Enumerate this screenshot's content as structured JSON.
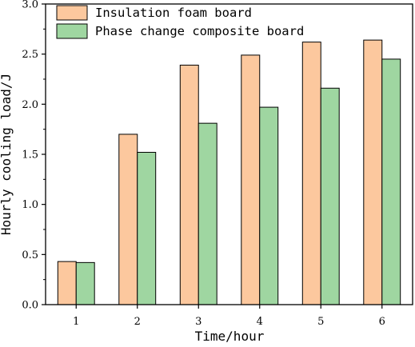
{
  "chart_data": {
    "type": "bar",
    "title": "",
    "xlabel": "Time/hour",
    "ylabel": "Hourly cooling load/J",
    "categories": [
      "1",
      "2",
      "3",
      "4",
      "5",
      "6"
    ],
    "series": [
      {
        "name": "Insulation foam board",
        "color": "#FCC89E",
        "values": [
          0.43,
          1.7,
          2.39,
          2.49,
          2.62,
          2.64
        ]
      },
      {
        "name": "Phase change composite board",
        "color": "#9FD6A1",
        "values": [
          0.42,
          1.52,
          1.81,
          1.97,
          2.16,
          2.45
        ]
      }
    ],
    "ylim": [
      0,
      3.0
    ],
    "yticks": [
      "0.0",
      "0.5",
      "1.0",
      "1.5",
      "2.0",
      "2.5",
      "3.0"
    ],
    "grid": false,
    "legend_position": "top-left"
  }
}
